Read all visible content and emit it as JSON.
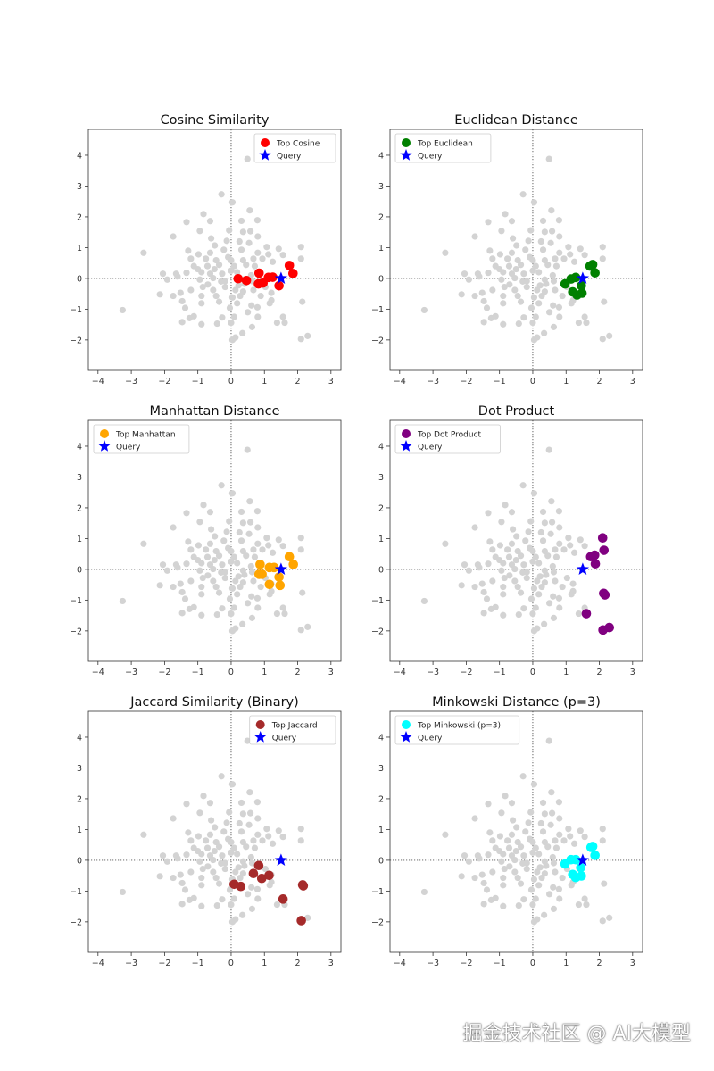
{
  "chart_data": [
    {
      "type": "scatter",
      "title": "Cosine Similarity",
      "legend": [
        "Top Cosine",
        "Query"
      ],
      "legend_position": "upper-right",
      "color": "#ff0000",
      "top_points": [
        [
          0.21,
          -0.01
        ],
        [
          0.46,
          -0.07
        ],
        [
          0.84,
          0.17
        ],
        [
          0.82,
          -0.18
        ],
        [
          0.96,
          -0.15
        ],
        [
          1.12,
          0.03
        ],
        [
          1.25,
          0.04
        ],
        [
          1.44,
          -0.24
        ],
        [
          1.75,
          0.42
        ],
        [
          1.86,
          0.16
        ]
      ]
    },
    {
      "type": "scatter",
      "title": "Euclidean Distance",
      "legend": [
        "Top Euclidean",
        "Query"
      ],
      "legend_position": "upper-left",
      "color": "#008000",
      "top_points": [
        [
          0.97,
          -0.18
        ],
        [
          1.15,
          -0.02
        ],
        [
          1.29,
          0.03
        ],
        [
          1.46,
          -0.24
        ],
        [
          1.2,
          -0.44
        ],
        [
          1.33,
          -0.54
        ],
        [
          1.48,
          -0.48
        ],
        [
          1.72,
          0.4
        ],
        [
          1.8,
          0.45
        ],
        [
          1.87,
          0.18
        ]
      ]
    },
    {
      "type": "scatter",
      "title": "Manhattan Distance",
      "legend": [
        "Top Manhattan",
        "Query"
      ],
      "legend_position": "upper-left",
      "color": "#ffa500",
      "top_points": [
        [
          0.87,
          0.16
        ],
        [
          0.84,
          -0.16
        ],
        [
          0.93,
          -0.16
        ],
        [
          1.15,
          0.06
        ],
        [
          1.29,
          0.06
        ],
        [
          1.44,
          -0.25
        ],
        [
          1.15,
          -0.49
        ],
        [
          1.47,
          -0.52
        ],
        [
          1.75,
          0.41
        ],
        [
          1.87,
          0.16
        ]
      ]
    },
    {
      "type": "scatter",
      "title": "Dot Product",
      "legend": [
        "Top Dot Product",
        "Query"
      ],
      "legend_position": "upper-left",
      "color": "#800080",
      "top_points": [
        [
          2.1,
          1.02
        ],
        [
          2.14,
          0.62
        ],
        [
          1.74,
          0.41
        ],
        [
          1.86,
          0.46
        ],
        [
          1.88,
          0.18
        ],
        [
          2.13,
          -0.78
        ],
        [
          2.17,
          -0.83
        ],
        [
          1.61,
          -1.44
        ],
        [
          2.11,
          -1.97
        ],
        [
          2.3,
          -1.89
        ]
      ]
    },
    {
      "type": "scatter",
      "title": "Jaccard Similarity (Binary)",
      "legend": [
        "Top Jaccard",
        "Query"
      ],
      "legend_position": "upper-right",
      "color": "#a52a2a",
      "top_points": [
        [
          0.83,
          -0.17
        ],
        [
          0.67,
          -0.43
        ],
        [
          0.92,
          -0.59
        ],
        [
          1.14,
          -0.49
        ],
        [
          0.09,
          -0.78
        ],
        [
          0.29,
          -0.85
        ],
        [
          2.15,
          -0.8
        ],
        [
          2.17,
          -0.83
        ],
        [
          1.56,
          -1.26
        ],
        [
          2.11,
          -1.96
        ]
      ]
    },
    {
      "type": "scatter",
      "title": "Minkowski Distance (p=3)",
      "legend": [
        "Top Minkowski (p=3)",
        "Query"
      ],
      "legend_position": "upper-left",
      "color": "#00ffff",
      "top_points": [
        [
          0.97,
          -0.12
        ],
        [
          1.15,
          0.02
        ],
        [
          1.29,
          0.02
        ],
        [
          1.44,
          -0.24
        ],
        [
          1.2,
          -0.46
        ],
        [
          1.29,
          -0.56
        ],
        [
          1.46,
          -0.51
        ],
        [
          1.75,
          0.42
        ],
        [
          1.8,
          0.45
        ],
        [
          1.87,
          0.16
        ]
      ]
    }
  ],
  "shared": {
    "query": [
      1.5,
      0.0
    ],
    "query_color": "#0000ff",
    "background_color": "#d3d3d3",
    "xlim": [
      -4.29,
      3.3
    ],
    "ylim": [
      -2.99,
      4.84
    ],
    "xticks": [
      -4,
      -3,
      -2,
      -1,
      0,
      1,
      2,
      3
    ],
    "yticks": [
      -2,
      -1,
      0,
      1,
      2,
      3,
      4
    ],
    "background_points": [
      [
        0.49,
        3.88
      ],
      [
        -0.29,
        2.73
      ],
      [
        0.04,
        2.47
      ],
      [
        0.56,
        2.21
      ],
      [
        -0.83,
        2.09
      ],
      [
        -1.34,
        1.83
      ],
      [
        -0.63,
        1.86
      ],
      [
        0.31,
        1.87
      ],
      [
        0.79,
        1.89
      ],
      [
        -0.94,
        1.54
      ],
      [
        -0.06,
        1.56
      ],
      [
        -1.74,
        1.36
      ],
      [
        0.36,
        1.51
      ],
      [
        0.58,
        1.53
      ],
      [
        0.8,
        1.36
      ],
      [
        -0.13,
        1.22
      ],
      [
        0.54,
        1.15
      ],
      [
        -0.49,
        1.07
      ],
      [
        1.07,
        1.02
      ],
      [
        1.43,
        0.96
      ],
      [
        2.1,
        1.02
      ],
      [
        -2.63,
        0.83
      ],
      [
        -1.29,
        0.9
      ],
      [
        -0.63,
        0.83
      ],
      [
        -0.22,
        0.93
      ],
      [
        0.31,
        0.93
      ],
      [
        0.8,
        0.83
      ],
      [
        1.12,
        0.78
      ],
      [
        1.56,
        0.76
      ],
      [
        2.1,
        0.64
      ],
      [
        -1.21,
        0.64
      ],
      [
        -0.98,
        0.78
      ],
      [
        -0.76,
        0.64
      ],
      [
        -0.45,
        0.59
      ],
      [
        -0.09,
        0.69
      ],
      [
        0.36,
        0.59
      ],
      [
        0.67,
        0.64
      ],
      [
        0.94,
        0.64
      ],
      [
        -1.12,
        0.4
      ],
      [
        -0.71,
        0.4
      ],
      [
        -0.36,
        0.44
      ],
      [
        0.09,
        0.4
      ],
      [
        0.45,
        0.44
      ],
      [
        0.71,
        0.4
      ],
      [
        1.25,
        0.54
      ],
      [
        -2.05,
        0.15
      ],
      [
        -1.65,
        0.15
      ],
      [
        -1.34,
        0.18
      ],
      [
        -0.89,
        0.2
      ],
      [
        -0.63,
        0.15
      ],
      [
        -0.27,
        0.15
      ],
      [
        -1.92,
        -0.04
      ],
      [
        -1.61,
        0.06
      ],
      [
        -0.94,
        -0.04
      ],
      [
        -0.54,
        0.01
      ],
      [
        -0.18,
        -0.09
      ],
      [
        0.36,
        -0.04
      ],
      [
        0.63,
        -0.09
      ],
      [
        -2.14,
        -0.52
      ],
      [
        -1.74,
        -0.57
      ],
      [
        -1.52,
        -0.47
      ],
      [
        -1.21,
        -0.38
      ],
      [
        -0.85,
        -0.28
      ],
      [
        -0.54,
        -0.38
      ],
      [
        -0.18,
        -0.28
      ],
      [
        0.13,
        -0.38
      ],
      [
        0.36,
        -0.43
      ],
      [
        0.67,
        -0.38
      ],
      [
        -0.89,
        -0.57
      ],
      [
        -0.45,
        -0.57
      ],
      [
        0.04,
        -0.62
      ],
      [
        0.27,
        -0.57
      ],
      [
        0.89,
        -0.57
      ],
      [
        1.21,
        -0.47
      ],
      [
        1.21,
        -0.71
      ],
      [
        2.14,
        -0.76
      ],
      [
        -1.47,
        -0.74
      ],
      [
        -0.89,
        -0.81
      ],
      [
        -0.36,
        -0.76
      ],
      [
        0.18,
        -0.81
      ],
      [
        1.16,
        -0.81
      ],
      [
        -1.38,
        -0.96
      ],
      [
        -0.04,
        -0.96
      ],
      [
        0.61,
        -0.88
      ],
      [
        0.79,
        -0.94
      ],
      [
        -3.26,
        -1.03
      ],
      [
        -1.12,
        -1.23
      ],
      [
        -0.27,
        -1.27
      ],
      [
        0.09,
        -1.25
      ],
      [
        0.8,
        -1.25
      ],
      [
        -1.25,
        -1.29
      ],
      [
        -1.47,
        -1.42
      ],
      [
        -0.89,
        -1.49
      ],
      [
        -0.42,
        -1.47
      ],
      [
        0.0,
        -1.44
      ],
      [
        0.63,
        -1.58
      ],
      [
        1.38,
        -1.44
      ],
      [
        1.61,
        -1.44
      ],
      [
        1.56,
        -1.25
      ],
      [
        0.34,
        -1.78
      ],
      [
        0.13,
        -1.92
      ],
      [
        0.04,
        -2.0
      ],
      [
        2.1,
        -1.97
      ],
      [
        2.3,
        -1.87
      ],
      [
        0.0,
        0.59
      ],
      [
        0.0,
        0.25
      ],
      [
        0.18,
        0.2
      ],
      [
        0.22,
        -0.23
      ],
      [
        0.4,
        -0.18
      ],
      [
        1.03,
        -0.28
      ],
      [
        -0.5,
        0.3
      ],
      [
        -0.3,
        -0.1
      ],
      [
        0.6,
        0.1
      ],
      [
        -0.7,
        -0.2
      ],
      [
        0.25,
        1.2
      ],
      [
        -1.0,
        0.3
      ],
      [
        0.5,
        -1.1
      ],
      [
        -0.6,
        1.3
      ]
    ]
  },
  "watermark": "掘金技术社区 @ AI大模型"
}
